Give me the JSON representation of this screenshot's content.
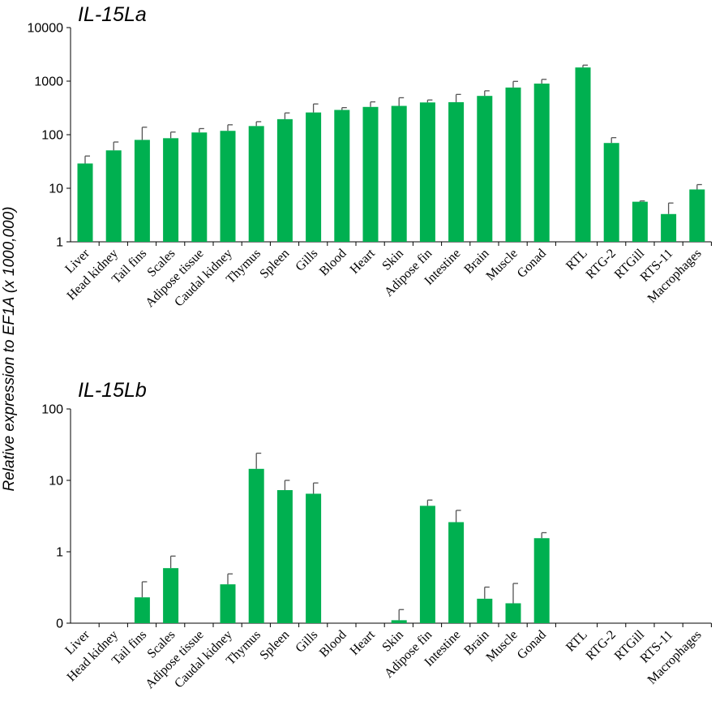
{
  "ylabel": "Relative expression to EF1A (x 1000,000)",
  "colors": {
    "bar": "#00b050",
    "error_bar": "#555555",
    "axis": "#000000"
  },
  "chart_data": [
    {
      "type": "bar",
      "title": "IL-15La",
      "scale": "log",
      "ylim": [
        1,
        10000
      ],
      "yticks": [
        1,
        10,
        100,
        1000,
        10000
      ],
      "ytick_labels": [
        "1",
        "10",
        "100",
        "1000",
        "10000"
      ],
      "categories": [
        "Liver",
        "Head kidney",
        "Tail fins",
        "Scales",
        "Adipose tissue",
        "Caudal kidney",
        "Thymus",
        "Spleen",
        "Gills",
        "Blood",
        "Heart",
        "Skin",
        "Adipose fin",
        "Intestine",
        "Brain",
        "Muscle",
        "Gonad",
        "RTL",
        "RTG-2",
        "RTGill",
        "RTS-11",
        "Macrophages"
      ],
      "values": [
        29,
        51,
        80,
        86,
        110,
        118,
        145,
        195,
        260,
        290,
        330,
        345,
        400,
        405,
        530,
        760,
        900,
        1800,
        70,
        5.6,
        3.3,
        9.5
      ],
      "error_upper": [
        40,
        73,
        138,
        112,
        130,
        153,
        175,
        255,
        375,
        320,
        410,
        490,
        445,
        565,
        660,
        990,
        1080,
        1990,
        88,
        5.8,
        5.3,
        11.7
      ]
    },
    {
      "type": "bar",
      "title": "IL-15Lb",
      "scale": "log",
      "ylim": [
        0.1,
        100
      ],
      "yticks": [
        0.1,
        1,
        10,
        100
      ],
      "ytick_labels": [
        "0",
        "1",
        "10",
        "100"
      ],
      "categories": [
        "Liver",
        "Head kidney",
        "Tail fins",
        "Scales",
        "Adipose tissue",
        "Caudal kidney",
        "Thymus",
        "Spleen",
        "Gills",
        "Blood",
        "Heart",
        "Skin",
        "Adipose fin",
        "Intestine",
        "Brain",
        "Muscle",
        "Gonad",
        "RTL",
        "RTG-2",
        "RTGill",
        "RTS-11",
        "Macrophages"
      ],
      "values": [
        null,
        null,
        0.23,
        0.59,
        null,
        0.35,
        14.5,
        7.3,
        6.5,
        null,
        null,
        0.11,
        4.4,
        2.6,
        0.22,
        0.19,
        1.55,
        null,
        null,
        null,
        null,
        null
      ],
      "error_upper": [
        null,
        null,
        0.38,
        0.87,
        null,
        0.49,
        24,
        10,
        9.2,
        null,
        null,
        0.155,
        5.3,
        3.8,
        0.32,
        0.36,
        1.85,
        null,
        null,
        null,
        null,
        null
      ]
    }
  ]
}
